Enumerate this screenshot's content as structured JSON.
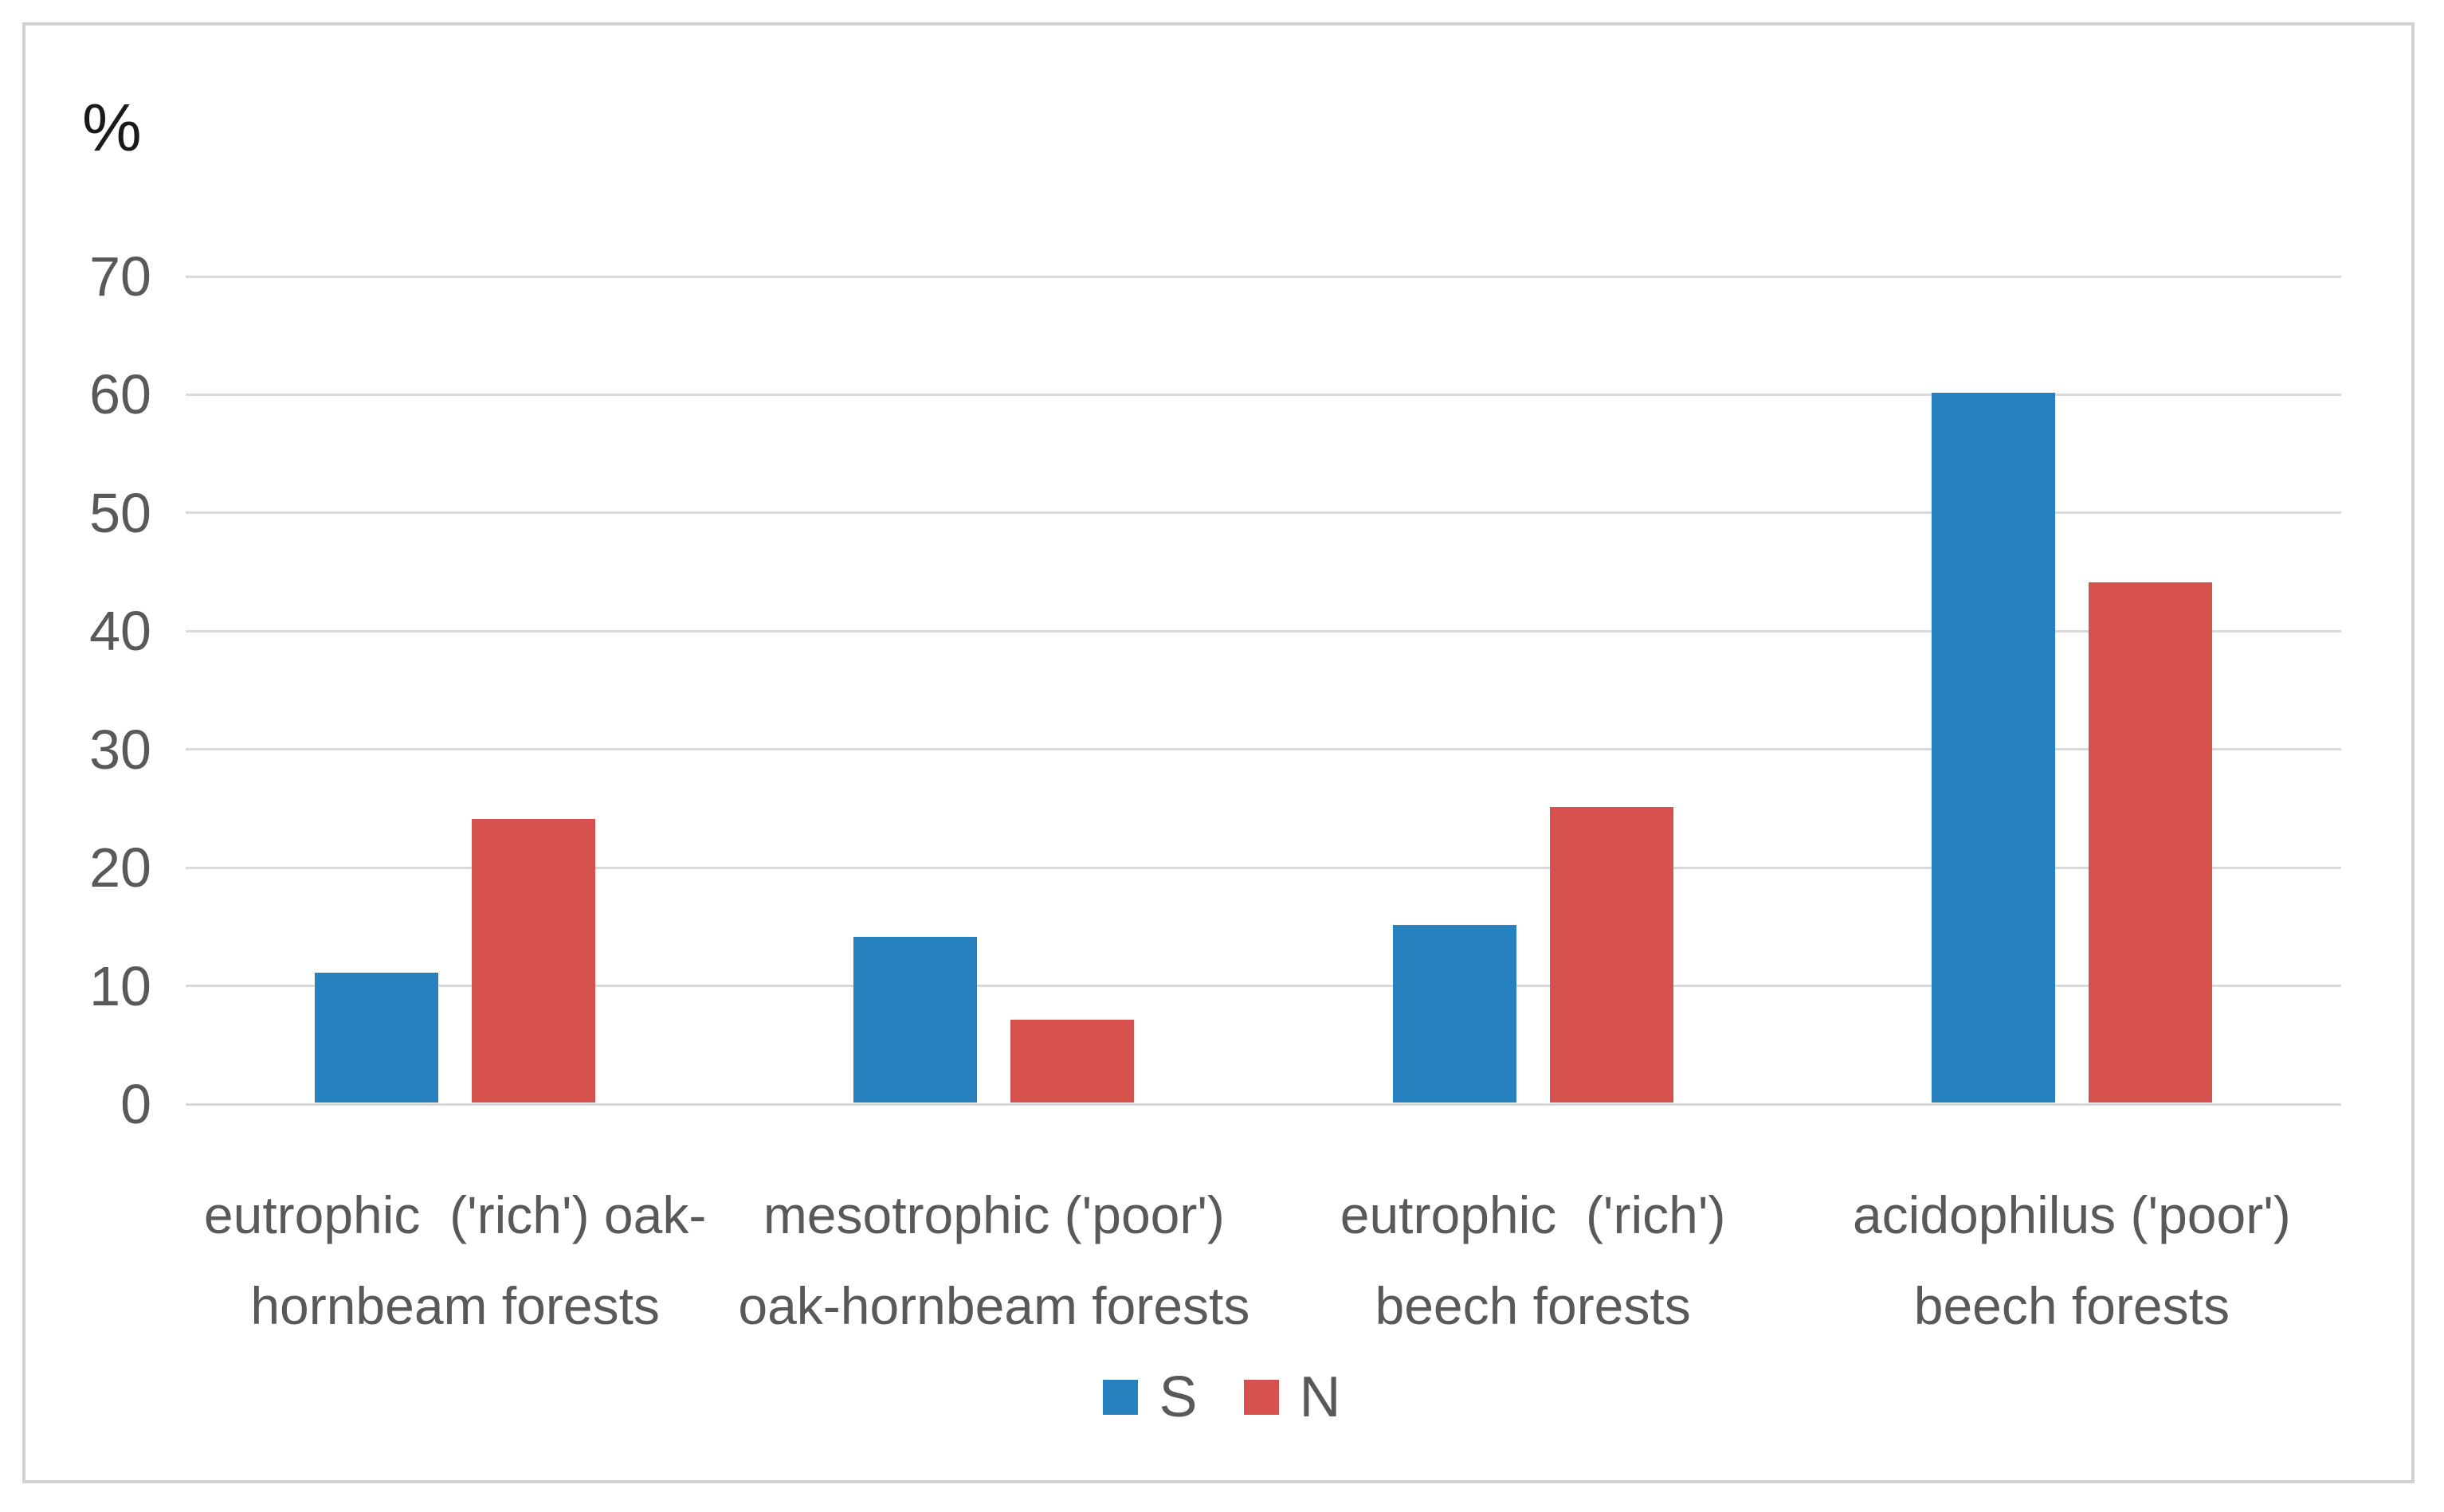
{
  "unit_label": "%",
  "chart_data": {
    "type": "bar",
    "title": "",
    "xlabel": "",
    "ylabel": "%",
    "ylim": [
      0,
      70
    ],
    "yticks": [
      0,
      10,
      20,
      30,
      40,
      50,
      60,
      70
    ],
    "grid": true,
    "legend_position": "bottom-center",
    "categories": [
      "eutrophic ('rich') oak-hornbeam forests",
      "mesotrophic ('poor') oak-hornbeam forests",
      "eutrophic ('rich') beech forests",
      "acidophilus ('poor') beech forests"
    ],
    "category_display_lines": [
      [
        "eutrophic  ('rich') oak-",
        "hornbeam forests"
      ],
      [
        "mesotrophic ('poor')",
        "oak-hornbeam forests"
      ],
      [
        "eutrophic  ('rich')",
        "beech forests"
      ],
      [
        "acidophilus ('poor')",
        "beech forests"
      ]
    ],
    "series": [
      {
        "name": "S",
        "color": "#2681be",
        "values": [
          11,
          14,
          15,
          60
        ]
      },
      {
        "name": "N",
        "color": "#d6514e",
        "values": [
          24,
          7,
          25,
          44
        ]
      }
    ],
    "colors": {
      "gridline": "#d9d9d9",
      "frame_border": "#d2d2d2",
      "axis_text": "#595959",
      "unit_label_text": "#1a1a1a",
      "background": "#ffffff"
    }
  }
}
